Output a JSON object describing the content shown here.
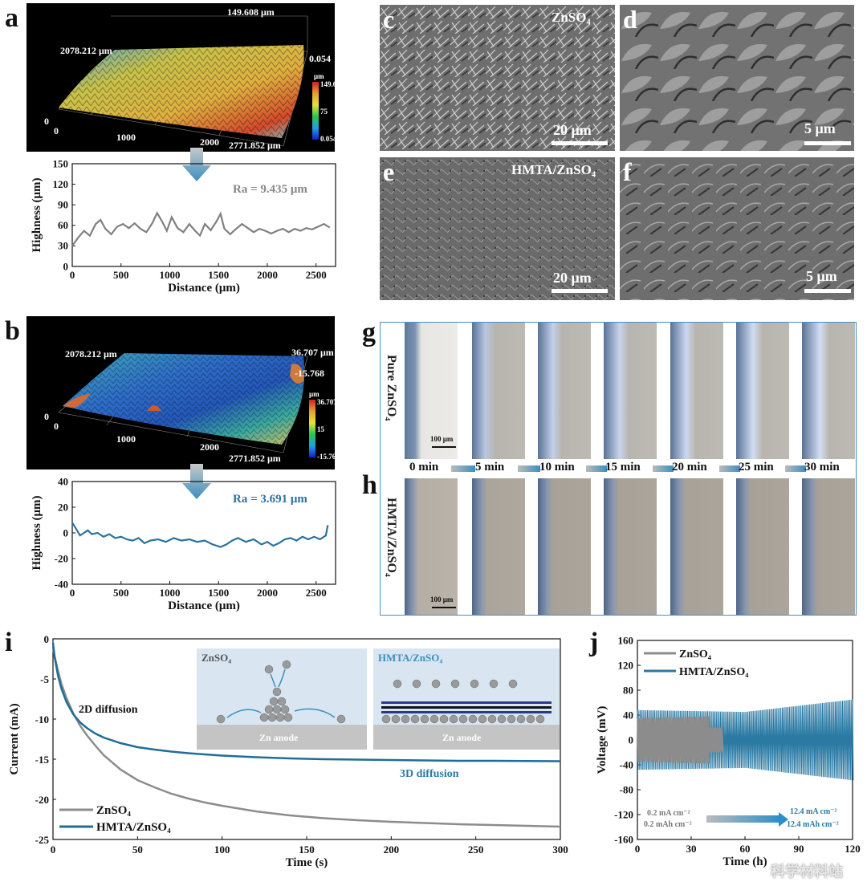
{
  "panels": {
    "a": {
      "label": "a",
      "map": {
        "top_value": "149.608 μm",
        "y_value": "2078.212 μm",
        "right_value": "0.054",
        "x_value": "2771.852 μm",
        "tick_0": "0",
        "tick_1000": "1000",
        "tick_2000": "2000",
        "cb_unit": "μm",
        "cb_max": "149.608",
        "cb_mid": "75",
        "cb_min": "0.054"
      },
      "ra": "Ra = 9.435 μm"
    },
    "b": {
      "label": "b",
      "map": {
        "top_value": "36.707 μm",
        "y_value": "2078.212 μm",
        "right_value": "-15.768",
        "x_value": "2771.852 μm",
        "tick_0": "0",
        "tick_1000": "1000",
        "tick_2000": "2000",
        "cb_unit": "μm",
        "cb_max": "36.707",
        "cb_mid": "15",
        "cb_min": "-15.768"
      },
      "ra": "Ra = 3.691 μm"
    },
    "c": {
      "label": "c",
      "title": "ZnSO₄",
      "scale": "20 μm"
    },
    "d": {
      "label": "d",
      "scale": "5 μm"
    },
    "e": {
      "label": "e",
      "title": "HMTA/ZnSO₄",
      "scale": "20 μm"
    },
    "f": {
      "label": "f",
      "scale": "5 μm"
    },
    "g": {
      "label": "g",
      "side": "Pure ZnSO₄",
      "scalebar": "100 μm"
    },
    "h": {
      "label": "h",
      "side": "HMTA/ZnSO₄",
      "scalebar": "100 μm"
    },
    "times": [
      "0 min",
      "5 min",
      "10 min",
      "15 min",
      "20 min",
      "25 min",
      "30 min"
    ],
    "i": {
      "label": "i",
      "annot_2d": "2D diffusion",
      "annot_3d": "3D diffusion",
      "inset_left_title": "ZnSO₄",
      "inset_right_title": "HMTA/ZnSO₄",
      "inset_anode": "Zn anode"
    },
    "j": {
      "label": "j",
      "cond_left_1": "0.2 mA cm⁻²",
      "cond_left_2": "0.2 mAh cm⁻²",
      "cond_right_1": "12.4 mA cm⁻²",
      "cond_right_2": "12.4 mAh cm⁻²"
    }
  },
  "watermark": "科学材料站",
  "chart_data": [
    {
      "type": "line",
      "id": "a-profile",
      "xlabel": "Distance (μm)",
      "ylabel": "Highness (μm)",
      "xlim": [
        0,
        2700
      ],
      "ylim": [
        0,
        150
      ],
      "xticks": [
        0,
        500,
        1000,
        1500,
        2000,
        2500
      ],
      "yticks": [
        0,
        30,
        60,
        90,
        120,
        150
      ],
      "annotation": "Ra = 9.435 μm",
      "series": [
        {
          "name": "ZnSO4",
          "color": "#808080",
          "x": [
            0,
            60,
            120,
            180,
            240,
            290,
            340,
            400,
            460,
            520,
            580,
            640,
            700,
            760,
            820,
            870,
            920,
            970,
            1020,
            1080,
            1140,
            1200,
            1260,
            1310,
            1360,
            1420,
            1480,
            1520,
            1560,
            1620,
            1680,
            1740,
            1800,
            1860,
            1920,
            1980,
            2040,
            2100,
            2160,
            2220,
            2280,
            2340,
            2400,
            2460,
            2520,
            2580,
            2640
          ],
          "y": [
            30,
            42,
            52,
            45,
            62,
            68,
            55,
            47,
            58,
            62,
            56,
            63,
            55,
            50,
            63,
            78,
            66,
            52,
            72,
            56,
            50,
            62,
            52,
            45,
            62,
            53,
            66,
            77,
            55,
            47,
            55,
            62,
            56,
            50,
            55,
            52,
            48,
            52,
            55,
            50,
            55,
            52,
            56,
            54,
            58,
            62,
            57
          ]
        }
      ]
    },
    {
      "type": "line",
      "id": "b-profile",
      "xlabel": "Distance (μm)",
      "ylabel": "Highness (μm)",
      "xlim": [
        0,
        2700
      ],
      "ylim": [
        -40,
        40
      ],
      "xticks": [
        0,
        500,
        1000,
        1500,
        2000,
        2500
      ],
      "yticks": [
        -40,
        -20,
        0,
        20,
        40
      ],
      "annotation": "Ra = 3.691 μm",
      "series": [
        {
          "name": "HMTA/ZnSO4",
          "color": "#2a73a0",
          "x": [
            0,
            40,
            80,
            120,
            160,
            200,
            260,
            320,
            380,
            440,
            500,
            560,
            620,
            680,
            740,
            800,
            880,
            960,
            1040,
            1120,
            1200,
            1280,
            1360,
            1440,
            1520,
            1580,
            1640,
            1700,
            1780,
            1860,
            1940,
            2000,
            2060,
            2120,
            2180,
            2240,
            2300,
            2360,
            2420,
            2480,
            2540,
            2600,
            2620
          ],
          "y": [
            8,
            3,
            -2,
            0,
            2,
            -1,
            0,
            -3,
            -1,
            -4,
            -3,
            -5,
            -6,
            -4,
            -8,
            -6,
            -5,
            -7,
            -4,
            -6,
            -5,
            -7,
            -6,
            -9,
            -11,
            -9,
            -6,
            -4,
            -7,
            -5,
            -9,
            -7,
            -10,
            -8,
            -5,
            -4,
            -6,
            -3,
            -5,
            -3,
            -5,
            -2,
            6
          ]
        }
      ]
    },
    {
      "type": "line",
      "id": "i-current",
      "xlabel": "Time (s)",
      "ylabel": "Current (mA)",
      "xlim": [
        0,
        300
      ],
      "ylim": [
        -25,
        0
      ],
      "xticks": [
        0,
        50,
        100,
        150,
        200,
        250,
        300
      ],
      "yticks": [
        -25,
        -20,
        -15,
        -10,
        -5,
        0
      ],
      "series": [
        {
          "name": "ZnSO₄",
          "color": "#8c8c8c",
          "x": [
            0,
            1,
            3,
            5,
            8,
            12,
            16,
            20,
            25,
            30,
            40,
            50,
            60,
            70,
            80,
            90,
            100,
            120,
            140,
            160,
            180,
            200,
            220,
            240,
            260,
            280,
            300
          ],
          "y": [
            -1,
            -2.2,
            -4,
            -5.6,
            -7.4,
            -9.3,
            -10.8,
            -12,
            -13.3,
            -14.5,
            -16.3,
            -17.6,
            -18.5,
            -19.3,
            -19.9,
            -20.4,
            -20.8,
            -21.5,
            -22,
            -22.35,
            -22.6,
            -22.8,
            -22.95,
            -23.1,
            -23.2,
            -23.3,
            -23.4
          ]
        },
        {
          "name": "HMTA/ZnSO₄",
          "color": "#1f6e98",
          "x": [
            0,
            1,
            3,
            5,
            8,
            12,
            16,
            20,
            25,
            30,
            40,
            50,
            60,
            70,
            80,
            90,
            100,
            120,
            140,
            160,
            180,
            200,
            220,
            240,
            260,
            280,
            300
          ],
          "y": [
            -0.5,
            -2.3,
            -4.6,
            -6.2,
            -7.9,
            -9.4,
            -10.4,
            -11.1,
            -11.8,
            -12.3,
            -13,
            -13.5,
            -13.8,
            -14.05,
            -14.25,
            -14.4,
            -14.55,
            -14.75,
            -14.9,
            -15,
            -15.05,
            -15.1,
            -15.15,
            -15.2,
            -15.2,
            -15.22,
            -15.25
          ]
        }
      ]
    },
    {
      "type": "line",
      "id": "j-voltage",
      "xlabel": "Time (h)",
      "ylabel": "Voltage (mV)",
      "xlim": [
        0,
        120
      ],
      "ylim": [
        -160,
        160
      ],
      "xticks": [
        0,
        30,
        60,
        90,
        120
      ],
      "yticks": [
        -160,
        -120,
        -80,
        -40,
        0,
        40,
        80,
        120,
        160
      ],
      "series": [
        {
          "name": "ZnSO₄",
          "color": "#8c8c8c",
          "x": [
            0,
            40,
            48
          ],
          "amplitude": [
            35,
            38,
            20
          ]
        },
        {
          "name": "HMTA/ZnSO₄",
          "color": "#2a7aa3",
          "x": [
            0,
            60,
            120
          ],
          "amplitude": [
            48,
            45,
            65
          ]
        }
      ]
    }
  ]
}
